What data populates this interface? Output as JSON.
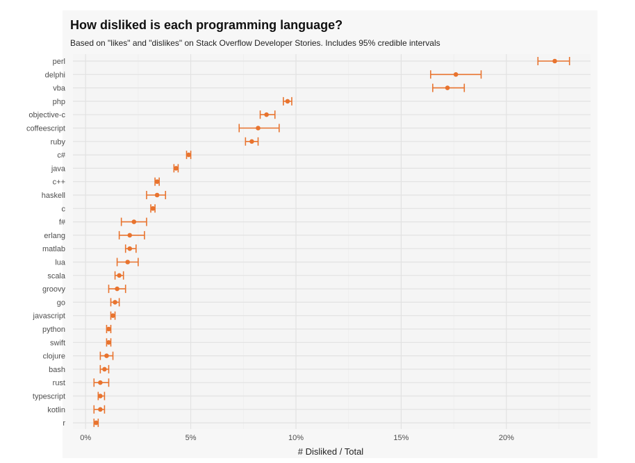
{
  "chart_data": {
    "type": "scatter",
    "title": "How disliked is each programming language?",
    "subtitle": "Based on \"likes\" and \"dislikes\" on Stack Overflow Developer Stories. Includes 95% credible intervals",
    "xlabel": "# Disliked / Total",
    "ylabel": "",
    "xlim": [
      -0.6,
      24.0
    ],
    "x_ticks": [
      0,
      5,
      10,
      15,
      20
    ],
    "x_tick_labels": [
      "0%",
      "5%",
      "10%",
      "15%",
      "20%"
    ],
    "grid": true,
    "color": "#e8732e",
    "panel_background": "#f5f5f5",
    "categories": [
      "perl",
      "delphi",
      "vba",
      "php",
      "objective-c",
      "coffeescript",
      "ruby",
      "c#",
      "java",
      "c++",
      "haskell",
      "c",
      "f#",
      "erlang",
      "matlab",
      "lua",
      "scala",
      "groovy",
      "go",
      "javascript",
      "python",
      "swift",
      "clojure",
      "bash",
      "rust",
      "typescript",
      "kotlin",
      "r"
    ],
    "values": [
      22.3,
      17.6,
      17.2,
      9.6,
      8.6,
      8.2,
      7.9,
      4.9,
      4.3,
      3.4,
      3.4,
      3.2,
      2.3,
      2.1,
      2.1,
      2.0,
      1.6,
      1.5,
      1.4,
      1.3,
      1.1,
      1.1,
      1.0,
      0.9,
      0.7,
      0.7,
      0.7,
      0.5
    ],
    "lower": [
      21.5,
      16.4,
      16.5,
      9.4,
      8.3,
      7.3,
      7.6,
      4.8,
      4.2,
      3.3,
      2.9,
      3.1,
      1.7,
      1.6,
      1.9,
      1.5,
      1.4,
      1.1,
      1.2,
      1.2,
      1.0,
      1.0,
      0.7,
      0.7,
      0.4,
      0.6,
      0.4,
      0.4
    ],
    "upper": [
      23.0,
      18.8,
      18.0,
      9.8,
      9.0,
      9.2,
      8.2,
      5.0,
      4.4,
      3.5,
      3.8,
      3.3,
      2.9,
      2.8,
      2.4,
      2.5,
      1.8,
      1.9,
      1.6,
      1.4,
      1.2,
      1.2,
      1.3,
      1.1,
      1.1,
      0.9,
      0.9,
      0.6
    ]
  }
}
